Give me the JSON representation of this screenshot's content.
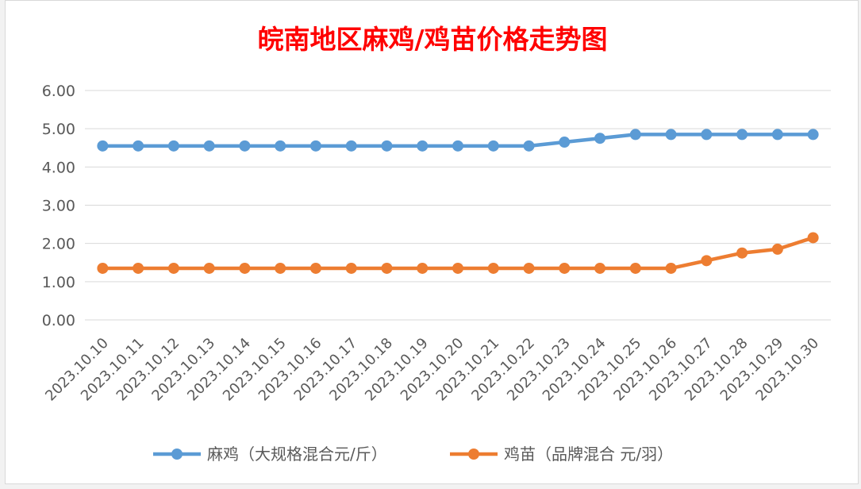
{
  "chart_data": {
    "type": "line",
    "title": "皖南地区麻鸡/鸡苗价格走势图",
    "xlabel": "",
    "ylabel": "",
    "ylim": [
      0,
      6
    ],
    "yticks": [
      "0.00",
      "1.00",
      "2.00",
      "3.00",
      "4.00",
      "5.00",
      "6.00"
    ],
    "grid": true,
    "legend_position": "bottom",
    "categories": [
      "2023.10.10",
      "2023.10.11",
      "2023.10.12",
      "2023.10.13",
      "2023.10.14",
      "2023.10.15",
      "2023.10.16",
      "2023.10.17",
      "2023.10.18",
      "2023.10.19",
      "2023.10.20",
      "2023.10.21",
      "2023.10.22",
      "2023.10.23",
      "2023.10.24",
      "2023.10.25",
      "2023.10.26",
      "2023.10.27",
      "2023.10.28",
      "2023.10.29",
      "2023.10.30"
    ],
    "series": [
      {
        "name": "麻鸡（大规格混合元/斤）",
        "color": "#5b9bd5",
        "values": [
          4.55,
          4.55,
          4.55,
          4.55,
          4.55,
          4.55,
          4.55,
          4.55,
          4.55,
          4.55,
          4.55,
          4.55,
          4.55,
          4.65,
          4.75,
          4.85,
          4.85,
          4.85,
          4.85,
          4.85,
          4.85
        ]
      },
      {
        "name": "鸡苗（品牌混合 元/羽）",
        "color": "#ed7d31",
        "values": [
          1.35,
          1.35,
          1.35,
          1.35,
          1.35,
          1.35,
          1.35,
          1.35,
          1.35,
          1.35,
          1.35,
          1.35,
          1.35,
          1.35,
          1.35,
          1.35,
          1.35,
          1.55,
          1.75,
          1.85,
          2.15
        ]
      }
    ]
  }
}
